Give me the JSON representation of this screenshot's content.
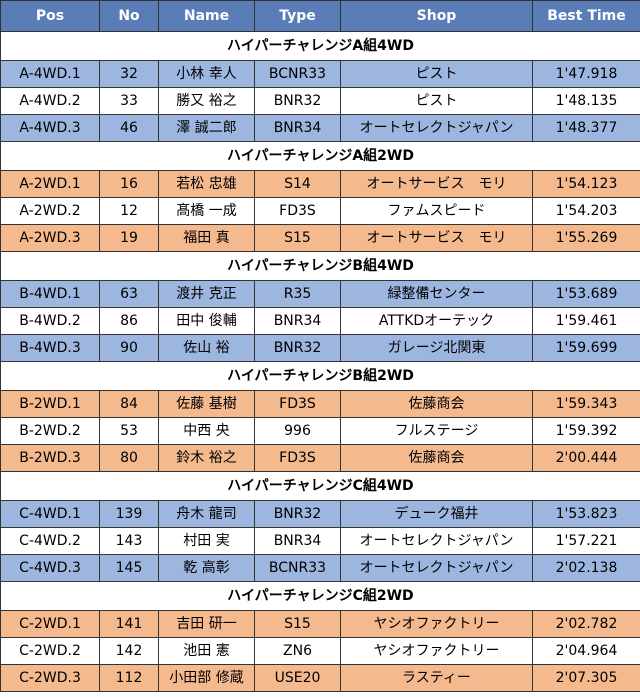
{
  "headers": {
    "pos": "Pos",
    "no": "No",
    "name": "Name",
    "type": "Type",
    "shop": "Shop",
    "best_time": "Best Time"
  },
  "colors": {
    "header_bg": "#5a7db8",
    "blue_row": "#9db6e0",
    "orange_row": "#f5b98e",
    "white_row": "#ffffff"
  },
  "groups": [
    {
      "title": "ハイパーチャレンジA組4WD",
      "accent": "blue",
      "rows": [
        {
          "pos": "A-4WD.1",
          "no": "32",
          "name": "小林 幸人",
          "type": "BCNR33",
          "shop": "ピスト",
          "time": "1'47.918"
        },
        {
          "pos": "A-4WD.2",
          "no": "33",
          "name": "勝又 裕之",
          "type": "BNR32",
          "shop": "ピスト",
          "time": "1'48.135"
        },
        {
          "pos": "A-4WD.3",
          "no": "46",
          "name": "澤 誠二郎",
          "type": "BNR34",
          "shop": "オートセレクトジャパン",
          "time": "1'48.377"
        }
      ]
    },
    {
      "title": "ハイパーチャレンジA組2WD",
      "accent": "orange",
      "rows": [
        {
          "pos": "A-2WD.1",
          "no": "16",
          "name": "若松 忠雄",
          "type": "S14",
          "shop": "オートサービス　モリ",
          "time": "1'54.123"
        },
        {
          "pos": "A-2WD.2",
          "no": "12",
          "name": "髙橋 一成",
          "type": "FD3S",
          "shop": "ファムスピード",
          "time": "1'54.203"
        },
        {
          "pos": "A-2WD.3",
          "no": "19",
          "name": "福田 真",
          "type": "S15",
          "shop": "オートサービス　モリ",
          "time": "1'55.269"
        }
      ]
    },
    {
      "title": "ハイパーチャレンジB組4WD",
      "accent": "blue",
      "rows": [
        {
          "pos": "B-4WD.1",
          "no": "63",
          "name": "渡井 克正",
          "type": "R35",
          "shop": "緑整備センター",
          "time": "1'53.689"
        },
        {
          "pos": "B-4WD.2",
          "no": "86",
          "name": "田中 俊輔",
          "type": "BNR34",
          "shop": "ATTKDオーテック",
          "time": "1'59.461"
        },
        {
          "pos": "B-4WD.3",
          "no": "90",
          "name": "佐山 裕",
          "type": "BNR32",
          "shop": "ガレージ北関東",
          "time": "1'59.699"
        }
      ]
    },
    {
      "title": "ハイパーチャレンジB組2WD",
      "accent": "orange",
      "rows": [
        {
          "pos": "B-2WD.1",
          "no": "84",
          "name": "佐藤 基樹",
          "type": "FD3S",
          "shop": "佐藤商会",
          "time": "1'59.343"
        },
        {
          "pos": "B-2WD.2",
          "no": "53",
          "name": "中西 央",
          "type": "996",
          "shop": "フルステージ",
          "time": "1'59.392"
        },
        {
          "pos": "B-2WD.3",
          "no": "80",
          "name": "鈴木 裕之",
          "type": "FD3S",
          "shop": "佐藤商会",
          "time": "2'00.444"
        }
      ]
    },
    {
      "title": "ハイパーチャレンジC組4WD",
      "accent": "blue",
      "rows": [
        {
          "pos": "C-4WD.1",
          "no": "139",
          "name": "舟木 龍司",
          "type": "BNR32",
          "shop": "デューク福井",
          "time": "1'53.823"
        },
        {
          "pos": "C-4WD.2",
          "no": "143",
          "name": "村田 実",
          "type": "BNR34",
          "shop": "オートセレクトジャパン",
          "time": "1'57.221"
        },
        {
          "pos": "C-4WD.3",
          "no": "145",
          "name": "乾 高彰",
          "type": "BCNR33",
          "shop": "オートセレクトジャパン",
          "time": "2'02.138"
        }
      ]
    },
    {
      "title": "ハイパーチャレンジC組2WD",
      "accent": "orange",
      "rows": [
        {
          "pos": "C-2WD.1",
          "no": "141",
          "name": "吉田 研一",
          "type": "S15",
          "shop": "ヤシオファクトリー",
          "time": "2'02.782"
        },
        {
          "pos": "C-2WD.2",
          "no": "142",
          "name": "池田 憲",
          "type": "ZN6",
          "shop": "ヤシオファクトリー",
          "time": "2'04.964"
        },
        {
          "pos": "C-2WD.3",
          "no": "112",
          "name": "小田部 修蔵",
          "type": "USE20",
          "shop": "ラスティー",
          "time": "2'07.305"
        }
      ]
    }
  ]
}
